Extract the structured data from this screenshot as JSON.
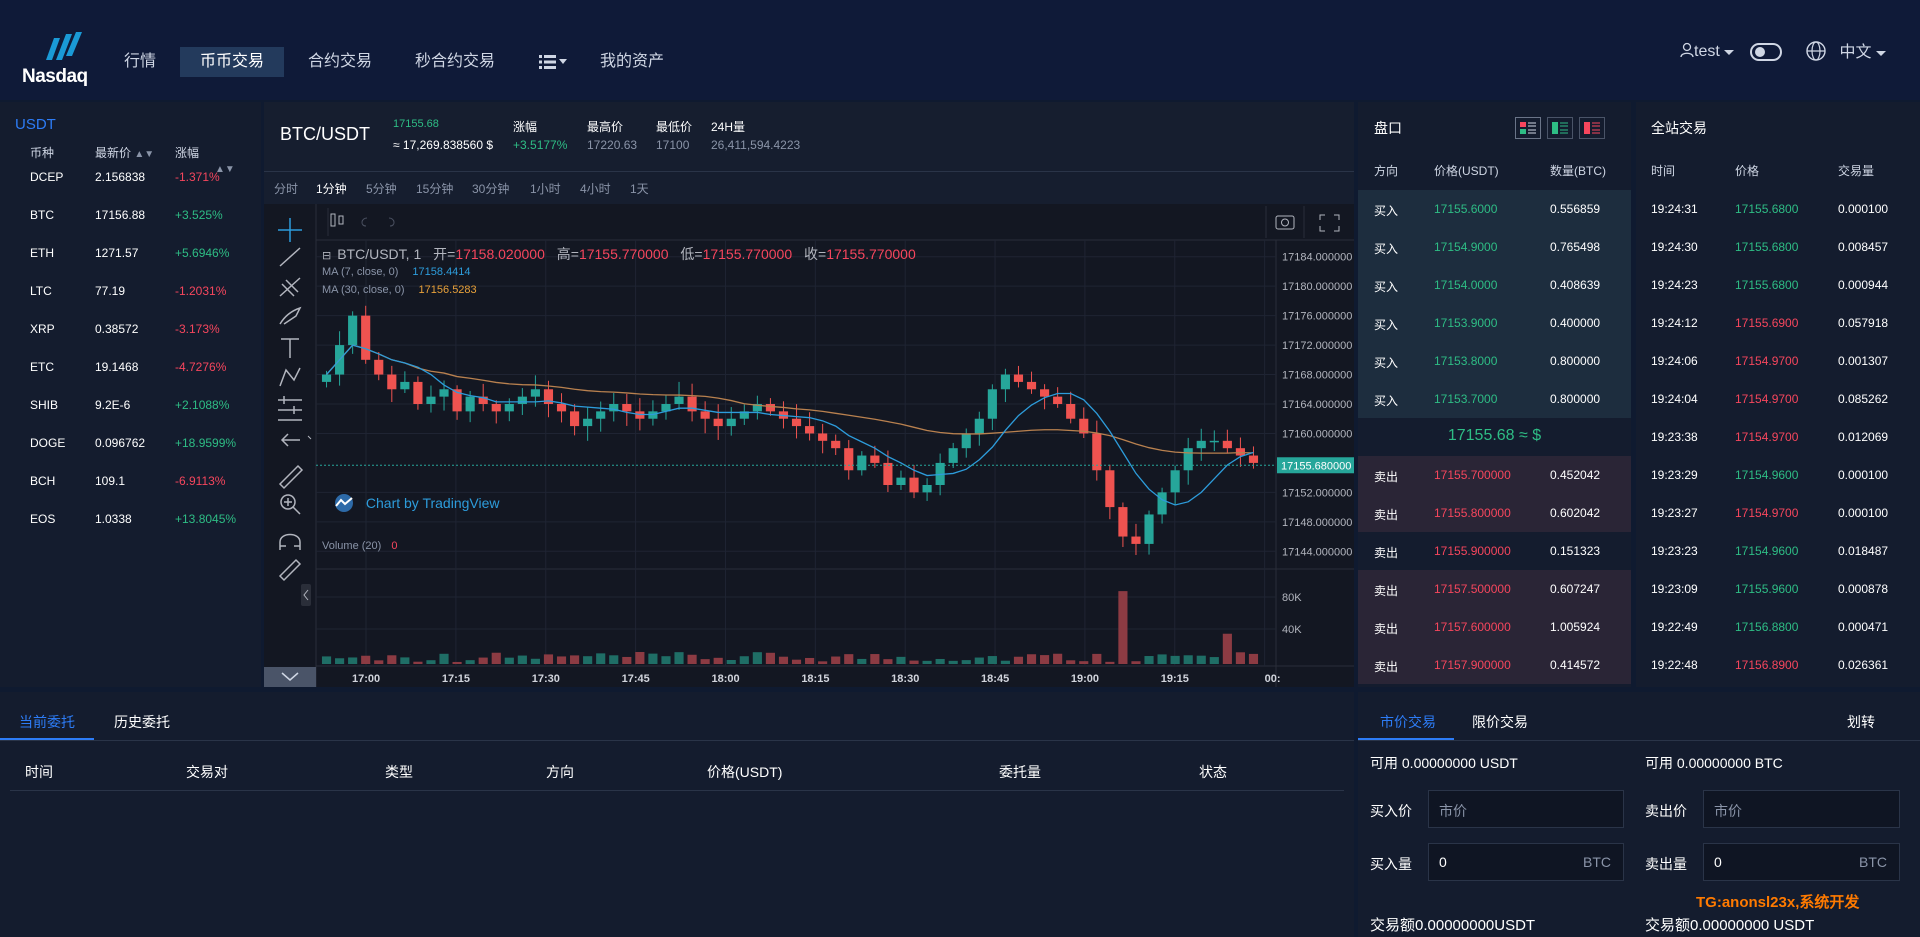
{
  "header": {
    "logo_text": "Nasdaq",
    "nav": [
      "行情",
      "币币交易",
      "合约交易",
      "秒合约交易",
      "我的资产"
    ],
    "active_nav": 1,
    "user": "test",
    "language": "中文"
  },
  "market": {
    "quote": "USDT",
    "headers": [
      "币种",
      "最新价",
      "涨幅"
    ],
    "rows": [
      {
        "symbol": "DCEP",
        "price": "2.156838",
        "change": "-1.371%"
      },
      {
        "symbol": "BTC",
        "price": "17156.88",
        "change": "+3.525%"
      },
      {
        "symbol": "ETH",
        "price": "1271.57",
        "change": "+5.6946%"
      },
      {
        "symbol": "LTC",
        "price": "77.19",
        "change": "-1.2031%"
      },
      {
        "symbol": "XRP",
        "price": "0.38572",
        "change": "-3.173%"
      },
      {
        "symbol": "ETC",
        "price": "19.1468",
        "change": "-4.7276%"
      },
      {
        "symbol": "SHIB",
        "price": "9.2E-6",
        "change": "+2.1088%"
      },
      {
        "symbol": "DOGE",
        "price": "0.096762",
        "change": "+18.9599%"
      },
      {
        "symbol": "BCH",
        "price": "109.1",
        "change": "-6.9113%"
      },
      {
        "symbol": "EOS",
        "price": "1.0338",
        "change": "+13.8045%"
      }
    ]
  },
  "ticker": {
    "pair": "BTC/USDT",
    "last": "17155.68",
    "fiat": "≈ 17,269.838560 $",
    "change_label": "涨幅",
    "change": "+3.5177%",
    "high_label": "最高价",
    "high": "17220.63",
    "low_label": "最低价",
    "low": "17100",
    "vol_label": "24H量",
    "vol": "26,411,594.4223"
  },
  "timeframes": [
    "分时",
    "1分钟",
    "5分钟",
    "15分钟",
    "30分钟",
    "1小时",
    "4小时",
    "1天"
  ],
  "active_timeframe": 1,
  "chart": {
    "legend_symbol": "BTC/USDT, 1",
    "open_label": "开=",
    "open": "17158.020000",
    "high_label": "高=",
    "high": "17155.770000",
    "low_label": "低=",
    "low": "17155.770000",
    "close_label": "收=",
    "close": "17155.770000",
    "ma7_label": "MA (7, close, 0)",
    "ma7_value": "17158.4414",
    "ma30_label": "MA (30, close, 0)",
    "ma30_value": "17156.5283",
    "volume_label": "Volume (20)",
    "volume_value": "0",
    "watermark": "Chart by TradingView",
    "last_price_tag": "17155.680000"
  },
  "chart_data": {
    "type": "candlestick",
    "y_ticks": [
      "17184.000000",
      "17180.000000",
      "17176.000000",
      "17172.000000",
      "17168.000000",
      "17164.000000",
      "17160.000000",
      "17152.000000",
      "17148.000000",
      "17144.000000"
    ],
    "ylim": [
      17142,
      17186
    ],
    "x_ticks": [
      "17:00",
      "17:15",
      "17:30",
      "17:45",
      "18:00",
      "18:15",
      "18:30",
      "18:45",
      "19:00",
      "19:15",
      "00:"
    ],
    "volume_ticks": [
      "80K",
      "40K"
    ],
    "close_series": [
      17168,
      17172,
      17176,
      17170,
      17168,
      17166,
      17167,
      17164,
      17165,
      17166,
      17163,
      17165,
      17164,
      17163,
      17164,
      17165,
      17166,
      17164,
      17163,
      17161,
      17162,
      17163,
      17164,
      17163,
      17162,
      17163,
      17164,
      17165,
      17163,
      17162,
      17161,
      17162,
      17163,
      17164,
      17163,
      17162,
      17161,
      17160,
      17159,
      17158,
      17155,
      17157,
      17156,
      17153,
      17154,
      17152,
      17153,
      17156,
      17158,
      17160,
      17162,
      17166,
      17168,
      17167,
      17166,
      17165,
      17164,
      17162,
      17160,
      17155,
      17150,
      17146,
      17145,
      17149,
      17152,
      17155,
      17158,
      17159,
      17159,
      17158,
      17157,
      17156
    ]
  },
  "orderbook": {
    "title": "盘口",
    "headers": [
      "方向",
      "价格(USDT)",
      "数量(BTC)"
    ],
    "buy_label": "买入",
    "sell_label": "卖出",
    "buys": [
      {
        "price": "17155.6000",
        "qty": "0.556859"
      },
      {
        "price": "17154.9000",
        "qty": "0.765498"
      },
      {
        "price": "17154.0000",
        "qty": "0.408639"
      },
      {
        "price": "17153.9000",
        "qty": "0.400000"
      },
      {
        "price": "17153.8000",
        "qty": "0.800000"
      },
      {
        "price": "17153.7000",
        "qty": "0.800000"
      }
    ],
    "mid": "17155.68 ≈ $",
    "sells": [
      {
        "price": "17155.700000",
        "qty": "0.452042"
      },
      {
        "price": "17155.800000",
        "qty": "0.602042"
      },
      {
        "price": "17155.900000",
        "qty": "0.151323"
      },
      {
        "price": "17157.500000",
        "qty": "0.607247"
      },
      {
        "price": "17157.600000",
        "qty": "1.005924"
      },
      {
        "price": "17157.900000",
        "qty": "0.414572"
      }
    ]
  },
  "trades": {
    "title": "全站交易",
    "headers": [
      "时间",
      "价格",
      "交易量"
    ],
    "rows": [
      {
        "time": "19:24:31",
        "price": "17155.6800",
        "qty": "0.000100",
        "side": "up"
      },
      {
        "time": "19:24:30",
        "price": "17155.6800",
        "qty": "0.008457",
        "side": "up"
      },
      {
        "time": "19:24:23",
        "price": "17155.6800",
        "qty": "0.000944",
        "side": "up"
      },
      {
        "time": "19:24:12",
        "price": "17155.6900",
        "qty": "0.057918",
        "side": "down"
      },
      {
        "time": "19:24:06",
        "price": "17154.9700",
        "qty": "0.001307",
        "side": "down"
      },
      {
        "time": "19:24:04",
        "price": "17154.9700",
        "qty": "0.085262",
        "side": "down"
      },
      {
        "time": "19:23:38",
        "price": "17154.9700",
        "qty": "0.012069",
        "side": "down"
      },
      {
        "time": "19:23:29",
        "price": "17154.9600",
        "qty": "0.000100",
        "side": "up"
      },
      {
        "time": "19:23:27",
        "price": "17154.9700",
        "qty": "0.000100",
        "side": "down"
      },
      {
        "time": "19:23:23",
        "price": "17154.9600",
        "qty": "0.018487",
        "side": "up"
      },
      {
        "time": "19:23:09",
        "price": "17155.9600",
        "qty": "0.000878",
        "side": "up"
      },
      {
        "time": "19:22:49",
        "price": "17156.8800",
        "qty": "0.000471",
        "side": "up"
      },
      {
        "time": "19:22:48",
        "price": "17156.8900",
        "qty": "0.026361",
        "side": "down"
      }
    ]
  },
  "orders": {
    "tabs": [
      "当前委托",
      "历史委托"
    ],
    "headers": [
      "时间",
      "交易对",
      "类型",
      "方向",
      "价格(USDT)",
      "委托量",
      "状态"
    ]
  },
  "trade_form": {
    "tabs": [
      "市价交易",
      "限价交易"
    ],
    "transfer": "划转",
    "avail_buy": "可用 0.00000000 USDT",
    "avail_sell": "可用 0.00000000 BTC",
    "buy_price_label": "买入价",
    "sell_price_label": "卖出价",
    "price_placeholder": "市价",
    "buy_qty_label": "买入量",
    "sell_qty_label": "卖出量",
    "qty_value": "0",
    "qty_unit": "BTC",
    "buy_total": "交易额0.00000000USDT",
    "sell_total": "交易额0.00000000 USDT",
    "watermark": "TG:anonsl23x,系统开发"
  },
  "colors": {
    "up": "#2ebd85",
    "down": "#f6465d",
    "accent": "#2d7cf6"
  }
}
